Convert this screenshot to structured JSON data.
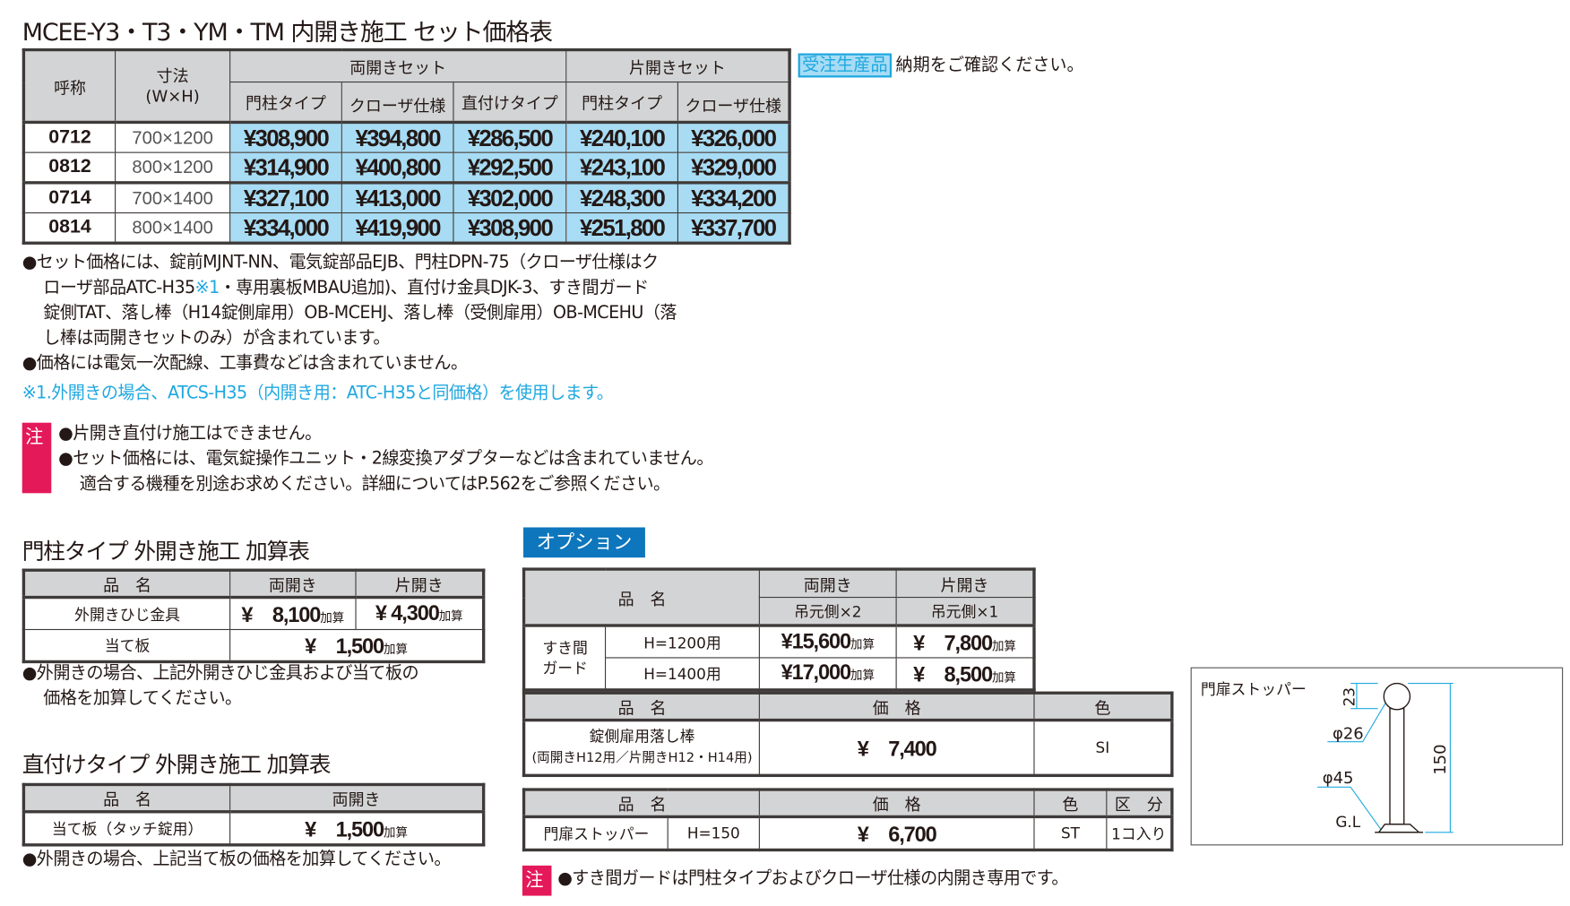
{
  "main": {
    "title": "MCEE-Y3・T3・YM・TM 内開き施工 セット価格表",
    "headers": {
      "name": "呼称",
      "size": "寸法",
      "size_sub": "(W×H)",
      "double_set": "両開きセット",
      "single_set": "片開きセット",
      "post_type": "門柱タイプ",
      "closer": "クローザ仕様",
      "direct_type": "直付けタイプ"
    },
    "rows": [
      {
        "code": "0712",
        "size": "700×1200",
        "prices": [
          "¥308,900",
          "¥394,800",
          "¥286,500",
          "¥240,100",
          "¥326,000"
        ]
      },
      {
        "code": "0812",
        "size": "800×1200",
        "prices": [
          "¥314,900",
          "¥400,800",
          "¥292,500",
          "¥243,100",
          "¥329,000"
        ]
      },
      {
        "code": "0714",
        "size": "700×1400",
        "prices": [
          "¥327,100",
          "¥413,000",
          "¥302,000",
          "¥248,300",
          "¥334,200"
        ]
      },
      {
        "code": "0814",
        "size": "800×1400",
        "prices": [
          "¥334,000",
          "¥419,900",
          "¥308,900",
          "¥251,800",
          "¥337,700"
        ]
      }
    ],
    "badge": "受注生産品",
    "badge_text": "納期をご確認ください。",
    "notes": {
      "l1": "●セット価格には、錠前MJNT-NN、電気錠部品EJB、門柱DPN-75（クローザ仕様はク",
      "l2a": "ローザ部品ATC-H35",
      "l2b": "※1",
      "l2c": "・専用裏板MBAU追加)、直付け金具DJK-3、すき間ガード",
      "l3": "錠側TAT、落し棒（H14錠側扉用）OB-MCEHJ、落し棒（受側扉用）OB-MCEHU（落",
      "l4": "し棒は両開きセットのみ）が含まれています。",
      "l5": "●価格には電気一次配線、工事費などは含まれていません。",
      "l6": "※1.外開きの場合、ATCS-H35（内開き用：ATC-H35と同価格）を使用します。"
    },
    "caution": {
      "mark": "注",
      "l1": "●片開き直付け施工はできません。",
      "l2": "●セット価格には、電気錠操作ユニット・2線変換アダプターなどは含まれていません。",
      "l3": "適合する機種を別途お求めください。詳細についてはP.562をご参照ください。"
    }
  },
  "post_outward": {
    "title": "門柱タイプ 外開き施工 加算表",
    "headers": [
      "品　名",
      "両開き",
      "片開き"
    ],
    "rows": [
      {
        "name": "外開きひじ金具",
        "double": "¥　8,100",
        "single": "¥ 4,300",
        "add": "加算"
      },
      {
        "name": "当て板",
        "both": "¥　1,500",
        "add": "加算"
      }
    ],
    "note1": "●外開きの場合、上記外開きひじ金具および当て板の",
    "note2": "価格を加算してください。"
  },
  "direct_outward": {
    "title": "直付けタイプ 外開き施工 加算表",
    "headers": [
      "品　名",
      "両開き"
    ],
    "row": {
      "name": "当て板（タッチ錠用）",
      "price": "¥　1,500",
      "add": "加算"
    },
    "note": "●外開きの場合、上記当て板の価格を加算してください。"
  },
  "options": {
    "label": "オプション",
    "gap_guard": {
      "headers": {
        "name": "品　名",
        "double": "両開き",
        "single": "片開き",
        "double_sub": "吊元側×2",
        "single_sub": "吊元側×1"
      },
      "name": "すき間ガード",
      "rows": [
        {
          "h": "H=1200用",
          "double": "¥15,600",
          "single": "¥　7,800",
          "add": "加算"
        },
        {
          "h": "H=1400用",
          "double": "¥17,000",
          "single": "¥　8,500",
          "add": "加算"
        }
      ]
    },
    "drop_rod": {
      "headers": [
        "品　名",
        "価　格",
        "色"
      ],
      "name1": "錠側扉用落し棒",
      "name2": "(両開きH12用／片開きH12・H14用)",
      "price": "¥　7,400",
      "color": "SI"
    },
    "stopper": {
      "headers": [
        "品　名",
        "価　格",
        "色",
        "区　分"
      ],
      "name": "門扉ストッパー",
      "h": "H=150",
      "price": "¥　6,700",
      "color": "ST",
      "unit": "1コ入り"
    },
    "caution_mark": "注",
    "caution": "●すき間ガードは門柱タイプおよびクローザ仕様の内開き専用です。"
  },
  "diagram": {
    "title": "門扉ストッパー",
    "dim_top": "23",
    "dim_ball": "φ26",
    "dim_base": "φ45",
    "dim_height": "150",
    "gl": "G.L"
  },
  "colors": {
    "price_bg": "#a7dcf4",
    "header_bg": "#d3d4d5",
    "caution": "#e4195a",
    "option_label": "#0d76bd",
    "note_blue": "#1fa8e0"
  }
}
